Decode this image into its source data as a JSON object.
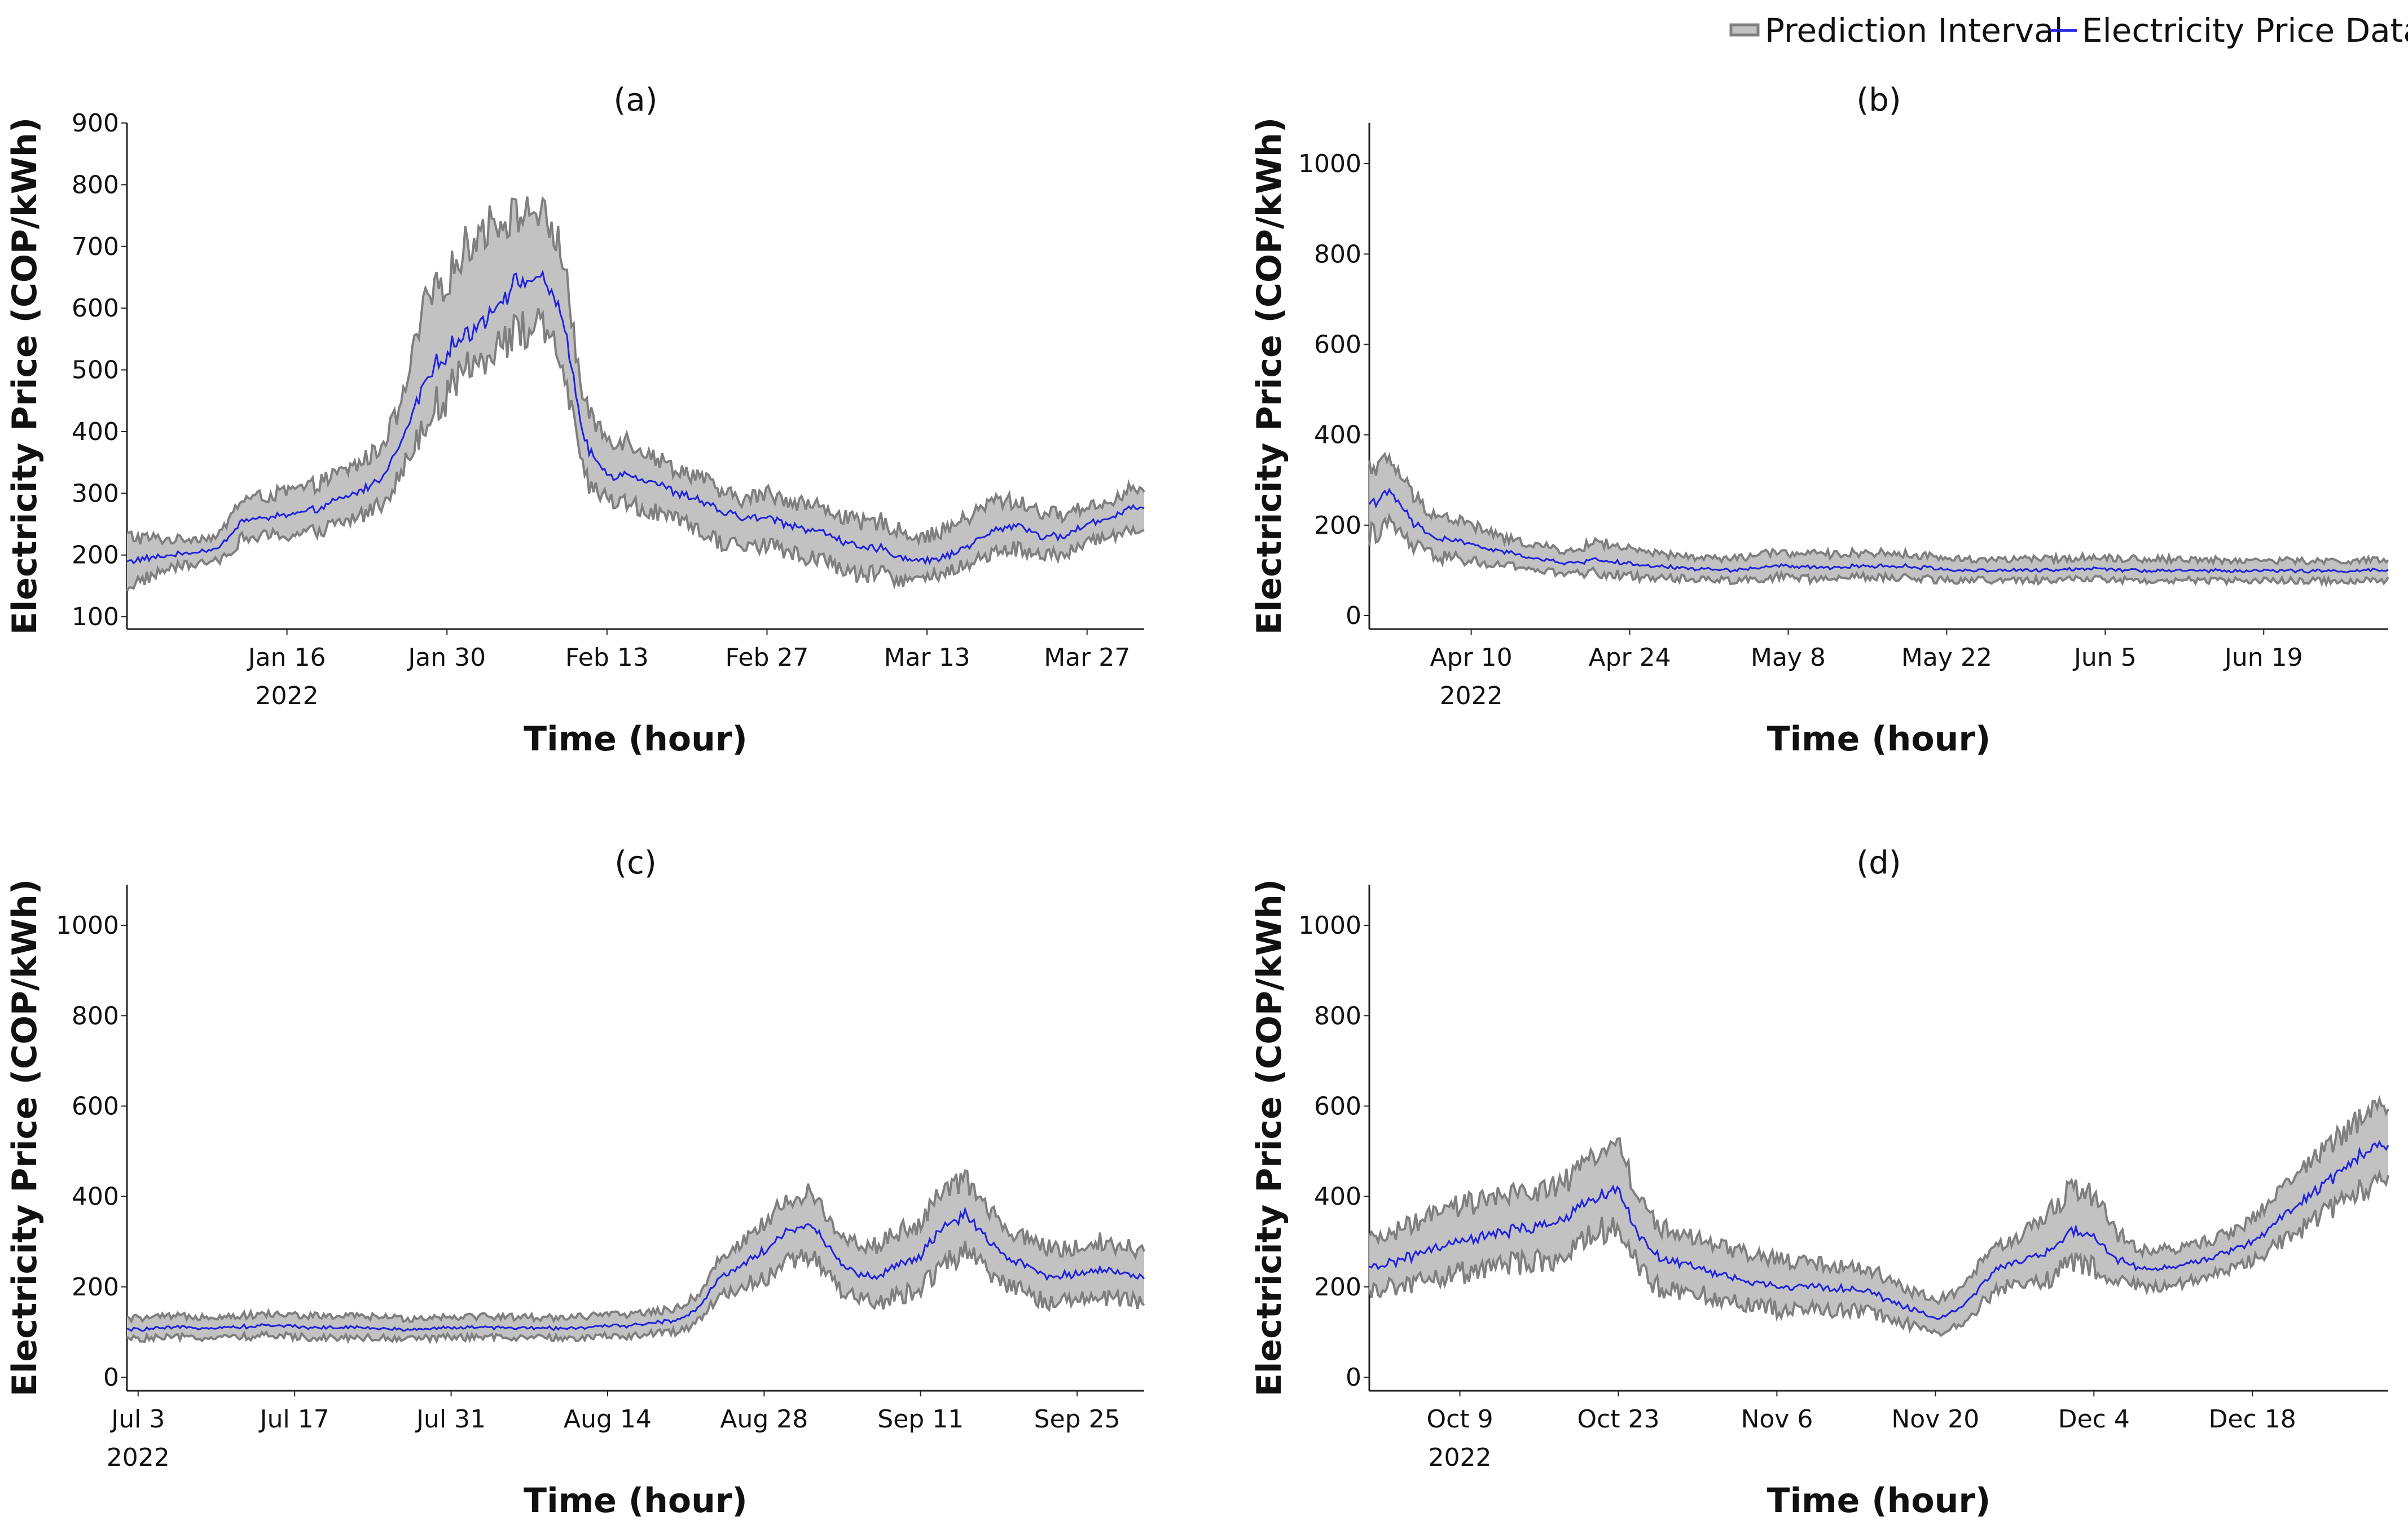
{
  "legend": {
    "interval_label": "Prediction Interval",
    "price_label": "Electricity Price Data",
    "interval_line_color": "#7f7f7f",
    "interval_fill_color": "#c2c2c2",
    "price_color": "#2222dd"
  },
  "chart_data": [
    {
      "type": "line",
      "panel": "(a)",
      "title": "(a)",
      "xlabel": "Time (hour)",
      "ylabel": "Electricity Price (COP/kWh)",
      "year_label": "2022",
      "x_unit": "day",
      "xlim": [
        0,
        89
      ],
      "ylim": [
        80,
        900
      ],
      "yticks": [
        100,
        200,
        300,
        400,
        500,
        600,
        700,
        800,
        900
      ],
      "xticks": [
        {
          "x": 14,
          "label": "Jan 16"
        },
        {
          "x": 28,
          "label": "Jan 30"
        },
        {
          "x": 42,
          "label": "Feb 13"
        },
        {
          "x": 56,
          "label": "Feb 27"
        },
        {
          "x": 70,
          "label": "Mar 13"
        },
        {
          "x": 84,
          "label": "Mar 27"
        }
      ],
      "series": [
        {
          "name": "Electricity Price Data",
          "x": [
            0,
            4,
            8,
            10,
            12,
            16,
            20,
            22,
            24,
            26,
            28,
            30,
            32,
            34,
            36,
            38,
            40,
            42,
            44,
            46,
            48,
            50,
            52,
            54,
            56,
            58,
            60,
            62,
            64,
            66,
            68,
            70,
            72,
            74,
            76,
            78,
            80,
            82,
            84,
            86,
            88,
            89
          ],
          "values": [
            190,
            200,
            210,
            255,
            260,
            270,
            300,
            320,
            380,
            480,
            530,
            560,
            600,
            640,
            650,
            600,
            380,
            330,
            330,
            320,
            300,
            290,
            270,
            260,
            260,
            250,
            240,
            230,
            210,
            210,
            195,
            190,
            200,
            220,
            240,
            250,
            230,
            230,
            250,
            260,
            280,
            275
          ]
        },
        {
          "name": "Prediction Interval upper",
          "x": [
            0,
            4,
            8,
            10,
            12,
            16,
            20,
            22,
            24,
            26,
            28,
            30,
            32,
            34,
            36,
            38,
            40,
            42,
            44,
            46,
            48,
            50,
            52,
            54,
            56,
            58,
            60,
            62,
            64,
            66,
            68,
            70,
            72,
            74,
            76,
            78,
            80,
            82,
            84,
            86,
            88,
            89
          ],
          "values": [
            230,
            225,
            230,
            290,
            295,
            310,
            345,
            370,
            440,
            600,
            650,
            710,
            740,
            750,
            760,
            700,
            440,
            390,
            385,
            360,
            340,
            330,
            300,
            290,
            300,
            290,
            280,
            270,
            250,
            255,
            235,
            230,
            245,
            265,
            290,
            285,
            270,
            265,
            280,
            285,
            310,
            300
          ]
        },
        {
          "name": "Prediction Interval lower",
          "x": [
            0,
            4,
            8,
            10,
            12,
            16,
            20,
            22,
            24,
            26,
            28,
            30,
            32,
            34,
            36,
            38,
            40,
            42,
            44,
            46,
            48,
            50,
            52,
            54,
            56,
            58,
            60,
            62,
            64,
            66,
            68,
            70,
            72,
            74,
            76,
            78,
            80,
            82,
            84,
            86,
            88,
            89
          ],
          "values": [
            150,
            180,
            190,
            225,
            230,
            235,
            260,
            280,
            330,
            420,
            460,
            500,
            540,
            560,
            570,
            520,
            320,
            290,
            280,
            270,
            255,
            240,
            220,
            215,
            215,
            205,
            195,
            185,
            165,
            170,
            160,
            160,
            175,
            190,
            205,
            210,
            200,
            200,
            220,
            230,
            245,
            240
          ]
        }
      ]
    },
    {
      "type": "line",
      "panel": "(b)",
      "title": "(b)",
      "xlabel": "Time (hour)",
      "ylabel": "Electricity Price (COP/kWh)",
      "year_label": "2022",
      "x_unit": "day",
      "xlim": [
        0,
        90
      ],
      "ylim": [
        -30,
        1090
      ],
      "yticks": [
        0,
        200,
        400,
        600,
        800,
        1000
      ],
      "xticks": [
        {
          "x": 9,
          "label": "Apr 10"
        },
        {
          "x": 23,
          "label": "Apr 24"
        },
        {
          "x": 37,
          "label": "May 8"
        },
        {
          "x": 51,
          "label": "May 22"
        },
        {
          "x": 65,
          "label": "Jun 5"
        },
        {
          "x": 79,
          "label": "Jun 19"
        }
      ],
      "series": [
        {
          "name": "Electricity Price Data",
          "x": [
            0,
            2,
            4,
            6,
            8,
            10,
            12,
            14,
            16,
            18,
            20,
            24,
            28,
            32,
            36,
            40,
            44,
            48,
            52,
            56,
            60,
            64,
            68,
            72,
            76,
            80,
            84,
            88,
            90
          ],
          "values": [
            250,
            270,
            200,
            170,
            165,
            150,
            140,
            130,
            120,
            115,
            125,
            110,
            105,
            100,
            110,
            105,
            110,
            108,
            100,
            100,
            100,
            105,
            100,
            100,
            98,
            100,
            98,
            100,
            100
          ]
        },
        {
          "name": "Prediction Interval upper",
          "x": [
            0,
            2,
            4,
            6,
            8,
            10,
            12,
            14,
            16,
            18,
            20,
            24,
            28,
            32,
            36,
            40,
            44,
            48,
            52,
            56,
            60,
            64,
            68,
            72,
            76,
            80,
            84,
            88,
            90
          ],
          "values": [
            330,
            340,
            260,
            220,
            210,
            190,
            170,
            160,
            150,
            140,
            165,
            140,
            130,
            125,
            140,
            135,
            140,
            135,
            125,
            125,
            125,
            130,
            125,
            125,
            122,
            122,
            120,
            122,
            122
          ]
        },
        {
          "name": "Prediction Interval lower",
          "x": [
            0,
            2,
            4,
            6,
            8,
            10,
            12,
            14,
            16,
            18,
            20,
            24,
            28,
            32,
            36,
            40,
            44,
            48,
            52,
            56,
            60,
            64,
            68,
            72,
            76,
            80,
            84,
            88,
            90
          ],
          "values": [
            180,
            200,
            150,
            130,
            125,
            115,
            110,
            105,
            95,
            92,
            95,
            85,
            82,
            78,
            85,
            80,
            85,
            82,
            78,
            78,
            78,
            82,
            78,
            78,
            76,
            78,
            76,
            78,
            78
          ]
        }
      ]
    },
    {
      "type": "line",
      "panel": "(c)",
      "title": "(c)",
      "xlabel": "Time (hour)",
      "ylabel": "Electricity Price (COP/kWh)",
      "year_label": "2022",
      "x_unit": "day",
      "xlim": [
        -1,
        90
      ],
      "ylim": [
        -30,
        1090
      ],
      "yticks": [
        0,
        200,
        400,
        600,
        800,
        1000
      ],
      "xticks": [
        {
          "x": 0,
          "label": "Jul 3"
        },
        {
          "x": 14,
          "label": "Jul 17"
        },
        {
          "x": 28,
          "label": "Jul 31"
        },
        {
          "x": 42,
          "label": "Aug 14"
        },
        {
          "x": 56,
          "label": "Aug 28"
        },
        {
          "x": 70,
          "label": "Sep 11"
        },
        {
          "x": 84,
          "label": "Sep 25"
        }
      ],
      "series": [
        {
          "name": "Electricity Price Data",
          "x": [
            -1,
            4,
            8,
            12,
            16,
            20,
            24,
            28,
            32,
            36,
            40,
            44,
            48,
            50,
            52,
            54,
            56,
            58,
            60,
            62,
            64,
            66,
            68,
            70,
            72,
            74,
            76,
            78,
            80,
            82,
            84,
            86,
            88,
            90
          ],
          "values": [
            105,
            110,
            110,
            115,
            110,
            110,
            105,
            110,
            110,
            108,
            110,
            115,
            125,
            150,
            220,
            250,
            280,
            320,
            340,
            280,
            230,
            220,
            250,
            270,
            330,
            360,
            300,
            260,
            240,
            220,
            230,
            240,
            230,
            220
          ]
        },
        {
          "name": "Prediction Interval upper",
          "x": [
            -1,
            4,
            8,
            12,
            16,
            20,
            24,
            28,
            32,
            36,
            40,
            44,
            48,
            50,
            52,
            54,
            56,
            58,
            60,
            62,
            64,
            66,
            68,
            70,
            72,
            74,
            76,
            78,
            80,
            82,
            84,
            86,
            88,
            90
          ],
          "values": [
            130,
            135,
            135,
            140,
            135,
            135,
            130,
            135,
            135,
            132,
            135,
            140,
            150,
            180,
            260,
            300,
            340,
            390,
            410,
            340,
            300,
            290,
            320,
            340,
            410,
            440,
            370,
            320,
            300,
            280,
            290,
            300,
            290,
            280
          ]
        },
        {
          "name": "Prediction Interval lower",
          "x": [
            -1,
            4,
            8,
            12,
            16,
            20,
            24,
            28,
            32,
            36,
            40,
            44,
            48,
            50,
            52,
            54,
            56,
            58,
            60,
            62,
            64,
            66,
            68,
            70,
            72,
            74,
            76,
            78,
            80,
            82,
            84,
            86,
            88,
            90
          ],
          "values": [
            85,
            88,
            88,
            92,
            88,
            88,
            85,
            88,
            88,
            86,
            88,
            92,
            100,
            120,
            180,
            200,
            220,
            250,
            270,
            220,
            170,
            160,
            180,
            200,
            250,
            280,
            230,
            200,
            180,
            165,
            170,
            180,
            170,
            165
          ]
        }
      ]
    },
    {
      "type": "line",
      "panel": "(d)",
      "title": "(d)",
      "xlabel": "Time (hour)",
      "ylabel": "Electricity Price (COP/kWh)",
      "year_label": "2022",
      "x_unit": "day",
      "xlim": [
        0,
        90
      ],
      "ylim": [
        -30,
        1090
      ],
      "yticks": [
        0,
        200,
        400,
        600,
        800,
        1000
      ],
      "xticks": [
        {
          "x": 8,
          "label": "Oct 9"
        },
        {
          "x": 22,
          "label": "Oct 23"
        },
        {
          "x": 36,
          "label": "Nov 6"
        },
        {
          "x": 50,
          "label": "Nov 20"
        },
        {
          "x": 64,
          "label": "Dec 4"
        },
        {
          "x": 78,
          "label": "Dec 18"
        }
      ],
      "series": [
        {
          "name": "Electricity Price Data",
          "x": [
            0,
            4,
            8,
            12,
            16,
            18,
            20,
            22,
            24,
            26,
            28,
            32,
            36,
            40,
            44,
            48,
            50,
            52,
            54,
            56,
            58,
            60,
            62,
            64,
            66,
            68,
            70,
            72,
            74,
            76,
            78,
            80,
            82,
            84,
            86,
            88,
            90
          ],
          "values": [
            240,
            270,
            300,
            320,
            340,
            360,
            400,
            420,
            300,
            260,
            250,
            220,
            200,
            200,
            190,
            150,
            130,
            150,
            200,
            250,
            260,
            280,
            320,
            310,
            260,
            240,
            240,
            250,
            260,
            280,
            300,
            340,
            380,
            420,
            460,
            500,
            510
          ]
        },
        {
          "name": "Prediction Interval upper",
          "x": [
            0,
            4,
            8,
            12,
            16,
            18,
            20,
            22,
            24,
            26,
            28,
            32,
            36,
            40,
            44,
            48,
            50,
            52,
            54,
            56,
            58,
            60,
            62,
            64,
            66,
            68,
            70,
            72,
            74,
            76,
            78,
            80,
            82,
            84,
            86,
            88,
            90
          ],
          "values": [
            300,
            340,
            380,
            400,
            420,
            440,
            500,
            520,
            380,
            330,
            310,
            280,
            260,
            250,
            240,
            190,
            170,
            190,
            250,
            300,
            320,
            360,
            420,
            400,
            320,
            280,
            280,
            290,
            300,
            320,
            350,
            400,
            450,
            500,
            540,
            580,
            600
          ]
        },
        {
          "name": "Prediction Interval lower",
          "x": [
            0,
            4,
            8,
            12,
            16,
            18,
            20,
            22,
            24,
            26,
            28,
            32,
            36,
            40,
            44,
            48,
            50,
            52,
            54,
            56,
            58,
            60,
            62,
            64,
            66,
            68,
            70,
            72,
            74,
            76,
            78,
            80,
            82,
            84,
            86,
            88,
            90
          ],
          "values": [
            190,
            210,
            230,
            250,
            260,
            280,
            320,
            340,
            230,
            190,
            190,
            170,
            150,
            150,
            145,
            115,
            100,
            115,
            160,
            200,
            210,
            220,
            250,
            240,
            210,
            200,
            200,
            210,
            220,
            240,
            260,
            290,
            320,
            360,
            390,
            420,
            430
          ]
        }
      ]
    }
  ]
}
